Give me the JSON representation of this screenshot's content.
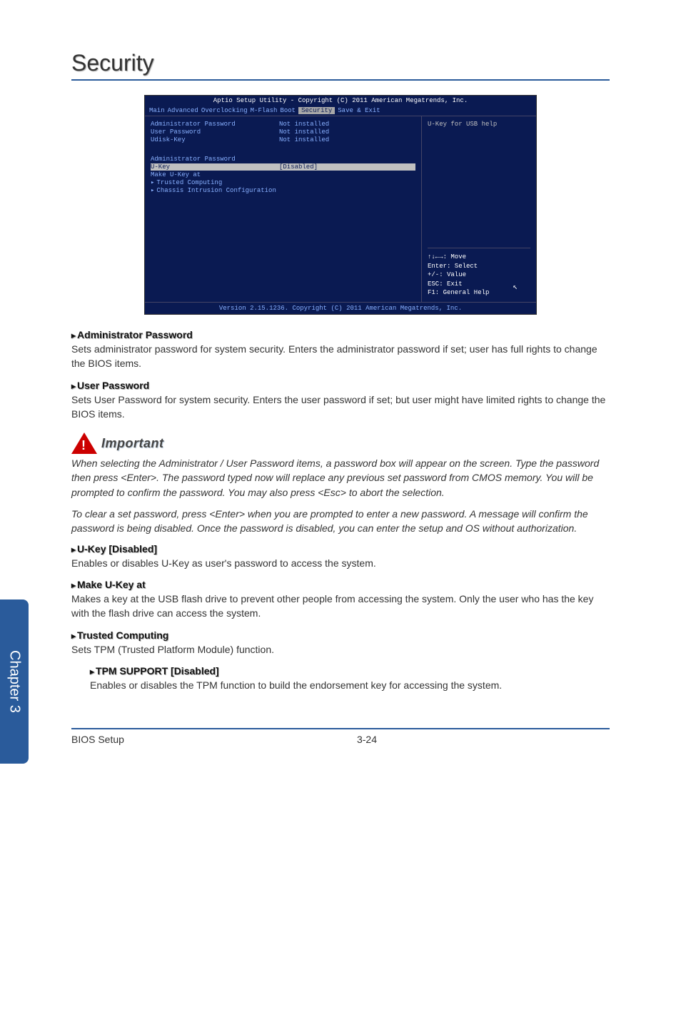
{
  "chapter_tab": "Chapter 3",
  "section_title": "Security",
  "bios": {
    "header": "Aptio Setup Utility - Copyright (C) 2011 American Megatrends, Inc.",
    "menu": {
      "items": [
        "Main",
        "Advanced",
        "Overclocking",
        "M-Flash",
        "Boot",
        "Security",
        "Save & Exit"
      ],
      "active_index": 5
    },
    "status_rows": [
      {
        "label": "Administrator Password",
        "value": "Not installed"
      },
      {
        "label": "User Password",
        "value": "Not installed"
      },
      {
        "label": "Udisk-Key",
        "value": "Not installed"
      }
    ],
    "config_rows": [
      {
        "label": "Administrator Password",
        "value": "",
        "highlight": false,
        "arrow": false
      },
      {
        "label": "U-Key",
        "value": "[Disabled]",
        "highlight": true,
        "arrow": false
      },
      {
        "label": "Make U-Key at",
        "value": "",
        "highlight": false,
        "arrow": false
      },
      {
        "label": "Trusted Computing",
        "value": "",
        "highlight": false,
        "arrow": true
      },
      {
        "label": "Chassis Intrusion Configuration",
        "value": "",
        "highlight": false,
        "arrow": true
      }
    ],
    "help_top": "U-Key for USB help",
    "help_bottom": [
      "↑↓←→: Move",
      "Enter: Select",
      "+/-: Value",
      "ESC: Exit",
      "F1: General Help"
    ],
    "footer": "Version 2.15.1236. Copyright (C) 2011 American Megatrends, Inc."
  },
  "items": [
    {
      "heading": "Administrator Password",
      "desc": "Sets administrator password for system security. Enters the administrator password if set; user has full rights to change the BIOS items.",
      "indent": 0
    },
    {
      "heading": "User Password",
      "desc": "Sets User Password for system security. Enters the user password if set;  but user might have limited rights to change the BIOS items.",
      "indent": 0
    }
  ],
  "important": {
    "title": "Important",
    "paras": [
      "When selecting the Administrator / User Password items, a password box will appear on the screen. Type the password then press <Enter>. The password typed now will replace any previous set password from CMOS memory. You will be prompted to confirm the password. You may also press <Esc> to abort the selection.",
      "To clear a set password, press <Enter> when you are prompted to enter a new password. A message will confirm the password is being disabled. Once the password is disabled, you can enter the setup and OS without authorization."
    ]
  },
  "items2": [
    {
      "heading": "U-Key [Disabled]",
      "desc": "Enables or disables U-Key as user's password to access the system.",
      "indent": 0
    },
    {
      "heading": "Make U-Key at",
      "desc": "Makes a key at the USB flash drive to prevent other people from accessing the system. Only the user who has the key with the flash drive can access the system.",
      "indent": 0
    },
    {
      "heading": "Trusted Computing",
      "desc": "Sets TPM (Trusted Platform Module) function.",
      "indent": 0
    },
    {
      "heading": "TPM SUPPORT [Disabled]",
      "desc": "Enables or disables the TPM function to build the endorsement key for accessing the system.",
      "indent": 1
    }
  ],
  "footer": {
    "left": "BIOS Setup",
    "center": "3-24"
  }
}
